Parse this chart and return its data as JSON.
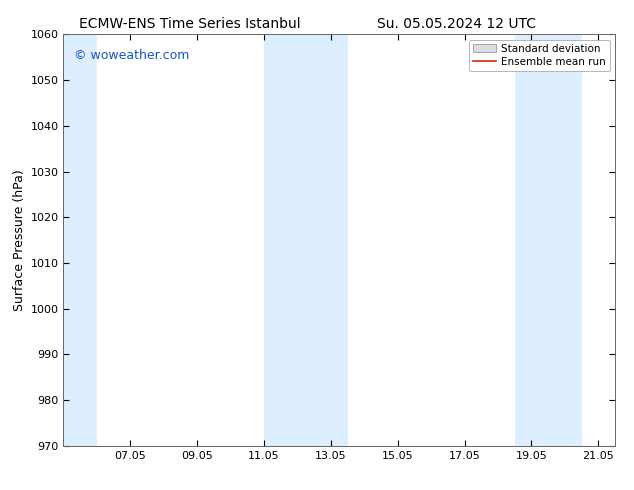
{
  "title_left": "ECMW-ENS Time Series Istanbul",
  "title_right": "Su. 05.05.2024 12 UTC",
  "ylabel": "Surface Pressure (hPa)",
  "ylim": [
    970,
    1060
  ],
  "yticks": [
    970,
    980,
    990,
    1000,
    1010,
    1020,
    1030,
    1040,
    1050,
    1060
  ],
  "xlim": [
    5.0,
    21.5
  ],
  "xtick_labels": [
    "07.05",
    "09.05",
    "11.05",
    "13.05",
    "15.05",
    "17.05",
    "19.05",
    "21.05"
  ],
  "xtick_positions": [
    7,
    9,
    11,
    13,
    15,
    17,
    19,
    21
  ],
  "shaded_regions": [
    {
      "start": 5.0,
      "end": 6.0
    },
    {
      "start": 11.0,
      "end": 13.5
    },
    {
      "start": 18.5,
      "end": 20.5
    }
  ],
  "shade_color": "#ddeeff",
  "watermark": "© woweather.com",
  "watermark_color": "#1155cc",
  "legend_std_color": "#dddddd",
  "legend_mean_color": "#dd2200",
  "bg_color": "#ffffff",
  "title_fontsize": 10,
  "tick_fontsize": 8,
  "ylabel_fontsize": 9,
  "legend_fontsize": 7.5,
  "watermark_fontsize": 9
}
